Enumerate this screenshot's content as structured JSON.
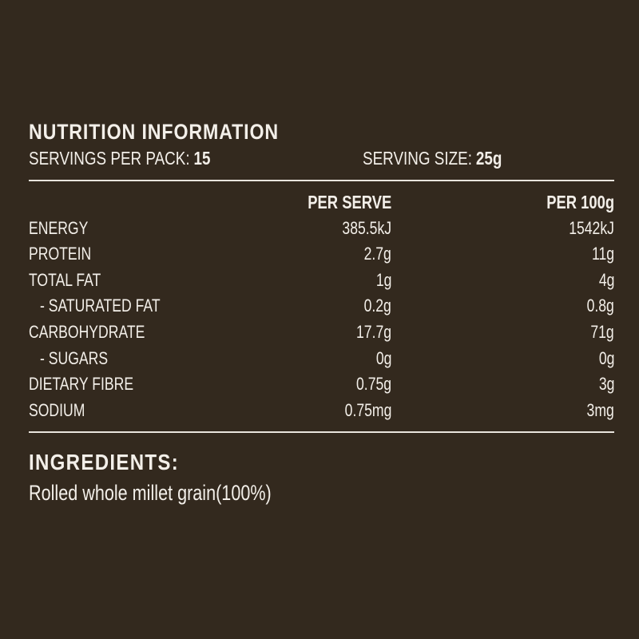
{
  "panel": {
    "title": "NUTRITION INFORMATION",
    "servings_label": "SERVINGS PER PACK:",
    "servings_value": "15",
    "serving_size_label": "SERVING SIZE:",
    "serving_size_value": "25g"
  },
  "table": {
    "headers": {
      "per_serve": "PER SERVE",
      "per_100g": "PER 100g"
    },
    "rows": [
      {
        "label": "ENERGY",
        "per_serve": "385.5kJ",
        "per_100g": "1542kJ"
      },
      {
        "label": "PROTEIN",
        "per_serve": "2.7g",
        "per_100g": "11g"
      },
      {
        "label": "TOTAL FAT",
        "per_serve": "1g",
        "per_100g": "4g"
      },
      {
        "label": "- SATURATED FAT",
        "per_serve": "0.2g",
        "per_100g": "0.8g"
      },
      {
        "label": "CARBOHYDRATE",
        "per_serve": "17.7g",
        "per_100g": "71g"
      },
      {
        "label": "- SUGARS",
        "per_serve": "0g",
        "per_100g": "0g"
      },
      {
        "label": "DIETARY FIBRE",
        "per_serve": "0.75g",
        "per_100g": "3g"
      },
      {
        "label": "SODIUM",
        "per_serve": "0.75mg",
        "per_100g": "3mg"
      }
    ]
  },
  "ingredients": {
    "title": "INGREDIENTS:",
    "text": "Rolled whole millet grain(100%)"
  },
  "colors": {
    "background": "#33291e",
    "text": "#f3efe9",
    "rule": "#e9e4dd"
  }
}
